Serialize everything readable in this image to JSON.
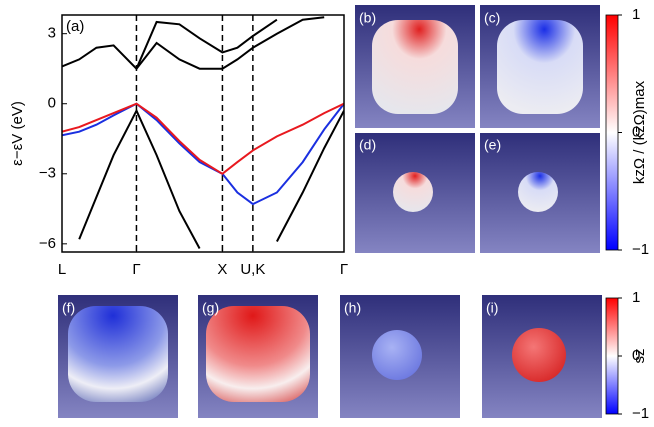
{
  "chart_data": [
    {
      "type": "line",
      "panel_label": "(a)",
      "ylabel": "ε−εV (eV)",
      "x": [
        0,
        0.2,
        0.4,
        0.6,
        0.866,
        1.1,
        1.366,
        1.6,
        1.866,
        2.04,
        2.22,
        2.5,
        2.8,
        3.05,
        3.28
      ],
      "xlim": [
        0,
        3.28
      ],
      "xticks": [
        {
          "value": 0,
          "label": "L"
        },
        {
          "value": 0.866,
          "label": "Γ"
        },
        {
          "value": 1.866,
          "label": "X"
        },
        {
          "value": 2.22,
          "label": "U,K"
        },
        {
          "value": 3.28,
          "label": "Γ"
        }
      ],
      "ylim": [
        -6.35,
        3.8
      ],
      "yticks": [
        {
          "value": -6,
          "label": "−6"
        },
        {
          "value": -3,
          "label": "−3"
        },
        0,
        3
      ],
      "series": [
        {
          "color": "#000000",
          "values": [
            1.6,
            1.9,
            2.4,
            2.5,
            1.5,
            2.6,
            1.9,
            1.5,
            1.5,
            1.9,
            2.4,
            3.0,
            3.6,
            3.7,
            null
          ]
        },
        {
          "color": "#000000",
          "values": [
            null,
            null,
            null,
            null,
            1.5,
            3.5,
            3.4,
            2.8,
            2.2,
            2.4,
            2.9,
            3.6,
            null,
            null,
            null
          ]
        },
        {
          "color": "#000000",
          "values": [
            null,
            -5.8,
            -4.0,
            -2.2,
            -0.3,
            -2.2,
            -4.6,
            -6.2,
            null,
            null,
            null,
            -5.9,
            -3.8,
            -1.9,
            -0.3
          ]
        },
        {
          "color": "#1a2fe0",
          "values": [
            -1.35,
            -1.2,
            -0.9,
            -0.5,
            0,
            -0.7,
            -1.7,
            -2.5,
            -3.0,
            -3.8,
            -4.3,
            -3.8,
            -2.5,
            -1.1,
            0
          ]
        },
        {
          "color": "#e8191f",
          "values": [
            -1.2,
            -1.0,
            -0.7,
            -0.4,
            0,
            -0.6,
            -1.6,
            -2.4,
            -3.0,
            -2.5,
            -2.0,
            -1.4,
            -0.9,
            -0.4,
            0
          ]
        }
      ]
    },
    {
      "type": "colorbar",
      "label": "kzΩ / (kzΩ)max",
      "ylim": [
        -1,
        1
      ],
      "yticks": [
        {
          "value": -1,
          "label": "−1"
        },
        0,
        1
      ]
    },
    {
      "type": "colorbar",
      "label": "sz",
      "ylim": [
        -1,
        1
      ],
      "yticks": [
        {
          "value": -1,
          "label": "−1"
        },
        0,
        1
      ]
    }
  ],
  "panels": [
    "(b)",
    "(c)",
    "(d)",
    "(e)",
    "(f)",
    "(g)",
    "(h)",
    "(i)"
  ]
}
